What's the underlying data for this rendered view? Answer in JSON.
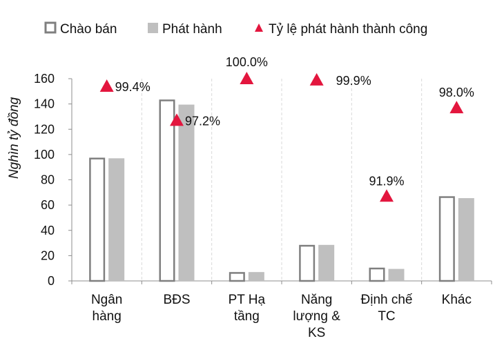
{
  "chart_data": {
    "type": "bar",
    "title": "",
    "ylabel": "Nghìn tỷ đồng",
    "ylim": [
      0,
      160
    ],
    "yticks": [
      0,
      20,
      40,
      60,
      80,
      100,
      120,
      140,
      160
    ],
    "categories": [
      [
        "Ngân",
        "hàng"
      ],
      [
        "BĐS"
      ],
      [
        "PT Hạ",
        "tầng"
      ],
      [
        "Năng",
        "lượng &",
        "KS"
      ],
      [
        "Định chế",
        "TC"
      ],
      [
        "Khác"
      ]
    ],
    "series": [
      {
        "name": "Chào bán",
        "style": "outline",
        "color": "#7f7f7f",
        "values": [
          97.5,
          143.5,
          7,
          28.5,
          10.5,
          67
        ]
      },
      {
        "name": "Phát hành",
        "style": "solid",
        "color": "#bfbfbf",
        "values": [
          97,
          139.5,
          7,
          28.5,
          9.5,
          65.5
        ]
      },
      {
        "name": "Tỷ lệ phát hành thành công",
        "style": "marker-triangle",
        "color": "#e3163e",
        "values": [
          99.4,
          97.2,
          100.0,
          99.9,
          91.9,
          98.0
        ],
        "labels": [
          "99.4%",
          "97.2%",
          "100.0%",
          "99.9%",
          "91.9%",
          "98.0%"
        ],
        "marker_y": [
          154,
          127,
          160,
          159,
          67,
          137
        ]
      }
    ],
    "grid": "vertical-dashed-separators",
    "legend_position": "top"
  }
}
